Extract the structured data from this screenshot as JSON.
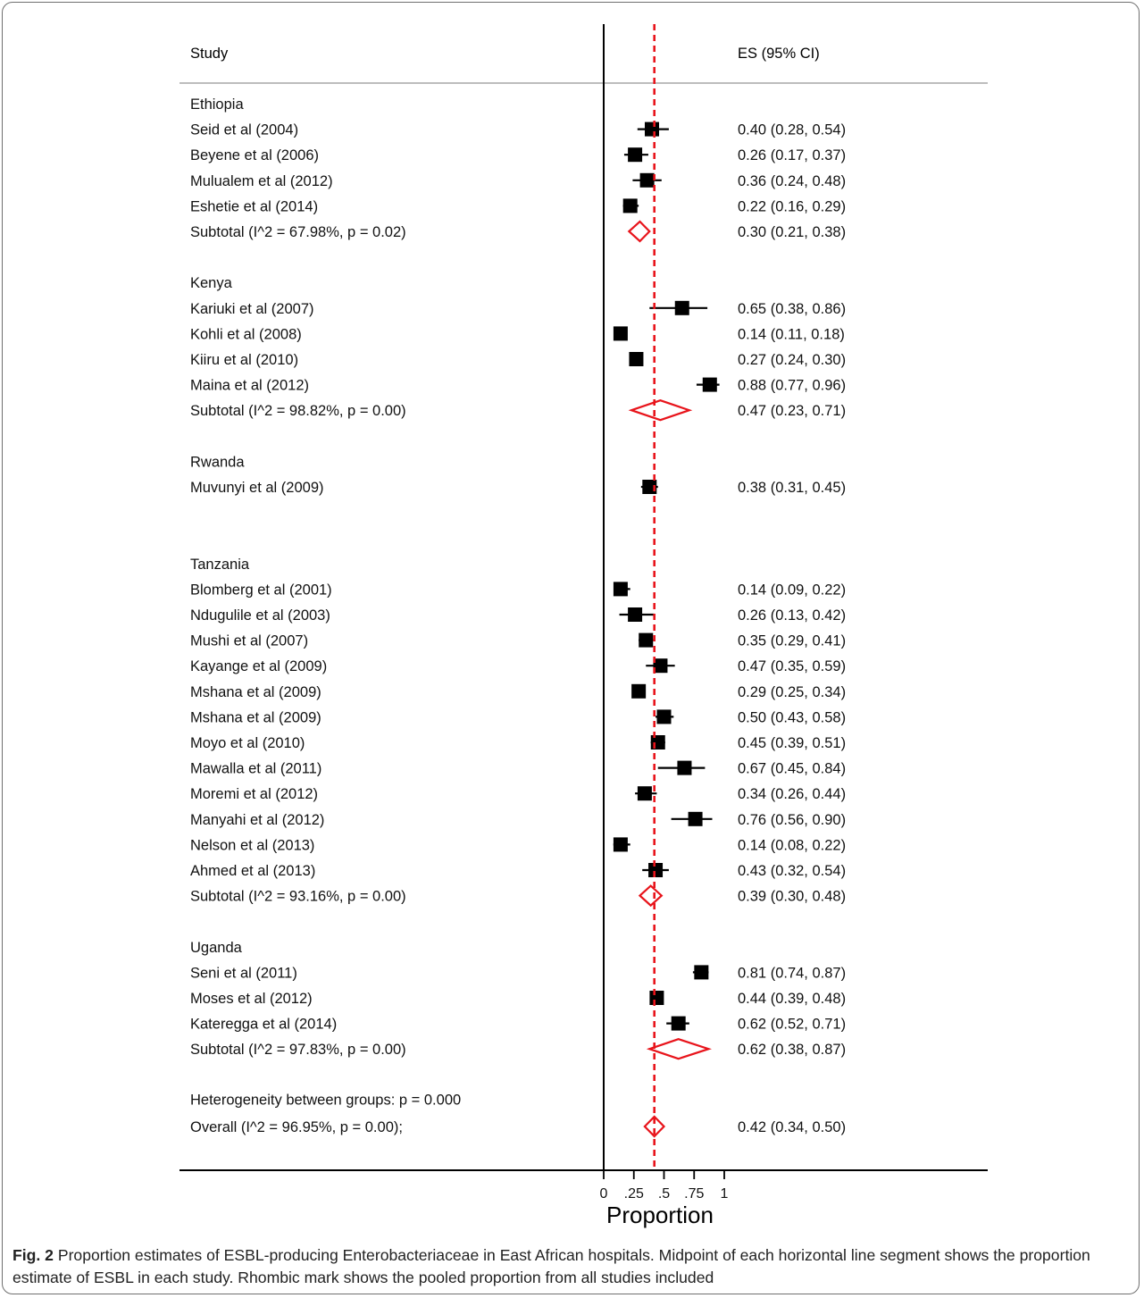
{
  "chart_data": {
    "type": "forest",
    "header_study": "Study",
    "header_es": "ES (95% CI)",
    "null_line": 0,
    "overall_line": 0.42,
    "xlabel": "Proportion",
    "xticks": [
      {
        "value": 0,
        "label": "0"
      },
      {
        "value": 0.25,
        "label": ".25"
      },
      {
        "value": 0.5,
        "label": ".5"
      },
      {
        "value": 0.75,
        "label": ".75"
      },
      {
        "value": 1,
        "label": "1"
      }
    ],
    "groups": [
      {
        "name": "Ethiopia",
        "studies": [
          {
            "label": "Seid et al  (2004)",
            "es": 0.4,
            "lo": 0.28,
            "hi": 0.54,
            "text": "0.40 (0.28, 0.54)"
          },
          {
            "label": "Beyene et al  (2006)",
            "es": 0.26,
            "lo": 0.17,
            "hi": 0.37,
            "text": "0.26 (0.17, 0.37)"
          },
          {
            "label": "Mulualem et al  (2012)",
            "es": 0.36,
            "lo": 0.24,
            "hi": 0.48,
            "text": "0.36 (0.24, 0.48)"
          },
          {
            "label": "Eshetie et al  (2014)",
            "es": 0.22,
            "lo": 0.16,
            "hi": 0.29,
            "text": "0.22 (0.16, 0.29)"
          }
        ],
        "subtotal": {
          "label": "Subtotal  (I^2 = 67.98%, p = 0.02)",
          "es": 0.3,
          "lo": 0.21,
          "hi": 0.38,
          "text": "0.30 (0.21, 0.38)"
        }
      },
      {
        "name": "Kenya",
        "studies": [
          {
            "label": "Kariuki et al  (2007)",
            "es": 0.65,
            "lo": 0.38,
            "hi": 0.86,
            "text": "0.65 (0.38, 0.86)"
          },
          {
            "label": "Kohli et al  (2008)",
            "es": 0.14,
            "lo": 0.11,
            "hi": 0.18,
            "text": "0.14 (0.11, 0.18)"
          },
          {
            "label": "Kiiru et al  (2010)",
            "es": 0.27,
            "lo": 0.24,
            "hi": 0.3,
            "text": "0.27 (0.24, 0.30)"
          },
          {
            "label": "Maina et al  (2012)",
            "es": 0.88,
            "lo": 0.77,
            "hi": 0.96,
            "text": "0.88 (0.77, 0.96)"
          }
        ],
        "subtotal": {
          "label": "Subtotal  (I^2 = 98.82%, p = 0.00)",
          "es": 0.47,
          "lo": 0.23,
          "hi": 0.71,
          "text": "0.47 (0.23, 0.71)"
        }
      },
      {
        "name": "Rwanda",
        "studies": [
          {
            "label": "Muvunyi et al  (2009)",
            "es": 0.38,
            "lo": 0.31,
            "hi": 0.45,
            "text": "0.38 (0.31, 0.45)"
          }
        ],
        "subtotal": null
      },
      {
        "name": "Tanzania",
        "studies": [
          {
            "label": "Blomberg et al  (2001)",
            "es": 0.14,
            "lo": 0.09,
            "hi": 0.22,
            "text": "0.14 (0.09, 0.22)"
          },
          {
            "label": "Ndugulile et al  (2003)",
            "es": 0.26,
            "lo": 0.13,
            "hi": 0.42,
            "text": "0.26 (0.13, 0.42)"
          },
          {
            "label": "Mushi et al  (2007)",
            "es": 0.35,
            "lo": 0.29,
            "hi": 0.41,
            "text": "0.35 (0.29, 0.41)"
          },
          {
            "label": "Kayange et al  (2009)",
            "es": 0.47,
            "lo": 0.35,
            "hi": 0.59,
            "text": "0.47 (0.35, 0.59)"
          },
          {
            "label": "Mshana et al  (2009)",
            "es": 0.29,
            "lo": 0.25,
            "hi": 0.34,
            "text": "0.29 (0.25, 0.34)"
          },
          {
            "label": "Mshana et al  (2009)",
            "es": 0.5,
            "lo": 0.43,
            "hi": 0.58,
            "text": "0.50 (0.43, 0.58)"
          },
          {
            "label": "Moyo et al  (2010)",
            "es": 0.45,
            "lo": 0.39,
            "hi": 0.51,
            "text": "0.45 (0.39, 0.51)"
          },
          {
            "label": "Mawalla et al  (2011)",
            "es": 0.67,
            "lo": 0.45,
            "hi": 0.84,
            "text": "0.67 (0.45, 0.84)"
          },
          {
            "label": "Moremi et al  (2012)",
            "es": 0.34,
            "lo": 0.26,
            "hi": 0.44,
            "text": "0.34 (0.26, 0.44)"
          },
          {
            "label": "Manyahi et al  (2012)",
            "es": 0.76,
            "lo": 0.56,
            "hi": 0.9,
            "text": "0.76 (0.56, 0.90)"
          },
          {
            "label": "Nelson et al  (2013)",
            "es": 0.14,
            "lo": 0.08,
            "hi": 0.22,
            "text": "0.14 (0.08, 0.22)"
          },
          {
            "label": "Ahmed et al  (2013)",
            "es": 0.43,
            "lo": 0.32,
            "hi": 0.54,
            "text": "0.43 (0.32, 0.54)"
          }
        ],
        "subtotal": {
          "label": "Subtotal  (I^2 = 93.16%, p = 0.00)",
          "es": 0.39,
          "lo": 0.3,
          "hi": 0.48,
          "text": "0.39 (0.30, 0.48)"
        }
      },
      {
        "name": "Uganda",
        "studies": [
          {
            "label": "Seni et al  (2011)",
            "es": 0.81,
            "lo": 0.74,
            "hi": 0.87,
            "text": "0.81 (0.74, 0.87)"
          },
          {
            "label": "Moses et al  (2012)",
            "es": 0.44,
            "lo": 0.39,
            "hi": 0.48,
            "text": "0.44 (0.39, 0.48)"
          },
          {
            "label": "Kateregga et al  (2014)",
            "es": 0.62,
            "lo": 0.52,
            "hi": 0.71,
            "text": "0.62 (0.52, 0.71)"
          }
        ],
        "subtotal": {
          "label": "Subtotal  (I^2 = 97.83%, p = 0.00)",
          "es": 0.62,
          "lo": 0.38,
          "hi": 0.87,
          "text": "0.62 (0.38, 0.87)"
        }
      }
    ],
    "heterogeneity_text": "Heterogeneity between groups: p = 0.000",
    "overall": {
      "label": "Overall  (I^2 = 96.95%, p = 0.00);",
      "es": 0.42,
      "lo": 0.34,
      "hi": 0.5,
      "text": "0.42 (0.34, 0.50)"
    },
    "colors": {
      "marker": "#000000",
      "diamond": "#e8141b",
      "refline": "#e8141b",
      "axis": "#000000",
      "header_rule": "#bdbdbd"
    }
  },
  "caption": {
    "label": "Fig. 2",
    "text": " Proportion estimates of ESBL-producing Enterobacteriaceae in East African hospitals. Midpoint of each horizontal line segment shows the proportion estimate of ESBL in each study. Rhombic mark shows the pooled proportion from all studies included"
  }
}
